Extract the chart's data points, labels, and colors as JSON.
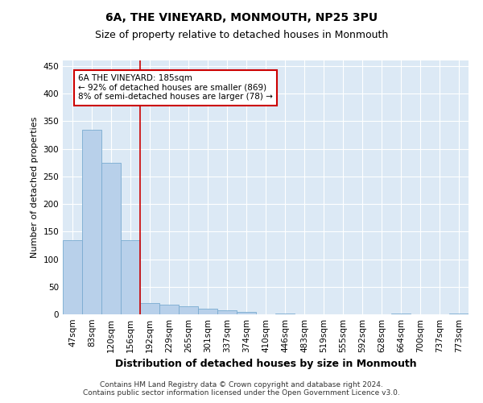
{
  "title": "6A, THE VINEYARD, MONMOUTH, NP25 3PU",
  "subtitle": "Size of property relative to detached houses in Monmouth",
  "xlabel": "Distribution of detached houses by size in Monmouth",
  "ylabel": "Number of detached properties",
  "categories": [
    "47sqm",
    "83sqm",
    "120sqm",
    "156sqm",
    "192sqm",
    "229sqm",
    "265sqm",
    "301sqm",
    "337sqm",
    "374sqm",
    "410sqm",
    "446sqm",
    "483sqm",
    "519sqm",
    "555sqm",
    "592sqm",
    "628sqm",
    "664sqm",
    "700sqm",
    "737sqm",
    "773sqm"
  ],
  "values": [
    135,
    335,
    275,
    135,
    20,
    17,
    14,
    10,
    7,
    5,
    0,
    2,
    0,
    0,
    0,
    0,
    0,
    1,
    0,
    0,
    1
  ],
  "bar_color": "#b8d0ea",
  "bar_edgecolor": "#7aabd0",
  "property_line_color": "#cc0000",
  "annotation_text": "6A THE VINEYARD: 185sqm\n← 92% of detached houses are smaller (869)\n8% of semi-detached houses are larger (78) →",
  "annotation_box_edgecolor": "#cc0000",
  "annotation_fontsize": 7.5,
  "title_fontsize": 10,
  "subtitle_fontsize": 9,
  "ylabel_fontsize": 8,
  "xlabel_fontsize": 9,
  "tick_fontsize": 7.5,
  "footer_text": "Contains HM Land Registry data © Crown copyright and database right 2024.\nContains public sector information licensed under the Open Government Licence v3.0.",
  "footer_fontsize": 6.5,
  "background_color": "#ffffff",
  "plot_background_color": "#dce9f5",
  "grid_color": "#ffffff",
  "ylim": [
    0,
    460
  ]
}
